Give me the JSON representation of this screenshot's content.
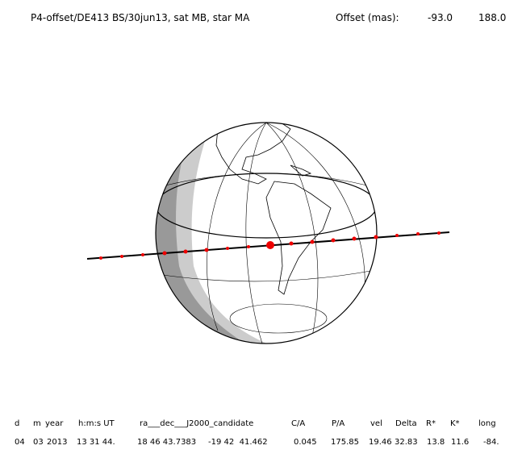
{
  "header": {
    "title": "P4-offset/DE413 BS/30jun13, sat MB, star MA",
    "offset_label": "Offset (mas):",
    "offset_x": "-93.0",
    "offset_y": "188.0"
  },
  "table": {
    "columns": [
      "d",
      "m",
      "year",
      "h:m:s UT",
      "ra___dec___J2000_candidate",
      "C/A",
      "P/A",
      "vel",
      "Delta",
      "R*",
      "K*",
      "long"
    ],
    "rows": [
      [
        "04",
        "03",
        "2013",
        "13 31 44.",
        "18 46 43.7383",
        "-19 42  41.462",
        "0.045",
        "175.85",
        "19.46",
        "32.83",
        "13.8",
        "11.6",
        "-84."
      ]
    ]
  }
}
